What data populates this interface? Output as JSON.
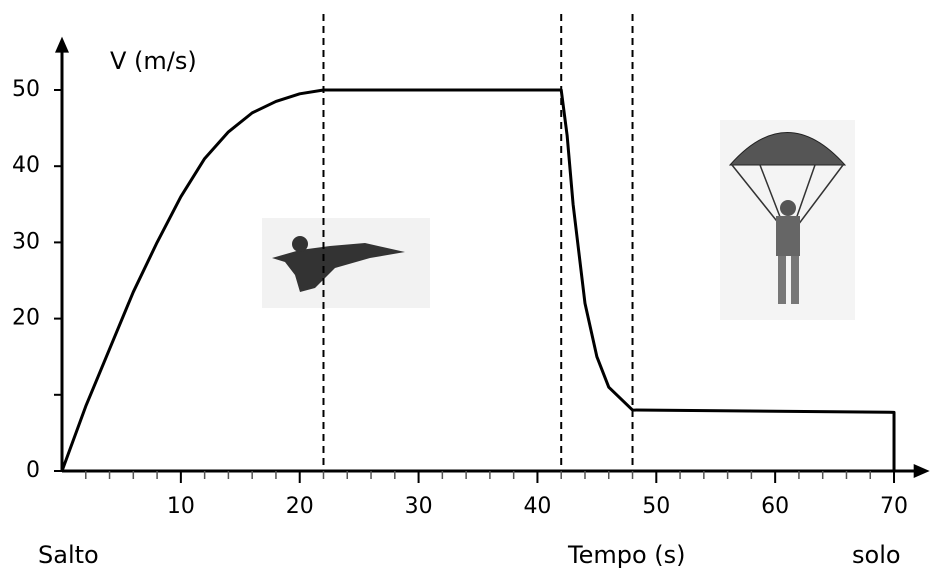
{
  "chart_data": {
    "type": "line",
    "y_label": "V (m/s)",
    "annotations": [
      "Salto",
      "Tempo (s)",
      "solo"
    ],
    "x": [
      0,
      2,
      4,
      6,
      8,
      10,
      12,
      14,
      16,
      18,
      20,
      22,
      42,
      42.5,
      43,
      44,
      45,
      46,
      48,
      70,
      70
    ],
    "series": [
      {
        "name": "V",
        "color": "#000000",
        "values": [
          0,
          8.5,
          16,
          23.5,
          30,
          36,
          41,
          44.5,
          47,
          48.5,
          49.5,
          50,
          50,
          44,
          35,
          22,
          15,
          11,
          8,
          7.7,
          0
        ]
      }
    ],
    "xlim": [
      0,
      73
    ],
    "ylim": [
      0,
      57
    ],
    "xticks": [
      10,
      20,
      30,
      40,
      50,
      60,
      70
    ],
    "yticks": [
      0,
      20,
      30,
      40,
      50
    ],
    "yticks_minor": [
      10
    ],
    "xminor_step": 2,
    "vlines": [
      22,
      42,
      48
    ],
    "grid": false
  }
}
